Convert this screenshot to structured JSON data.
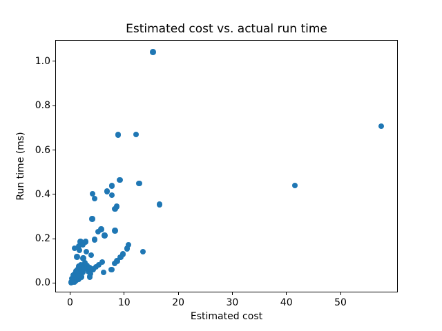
{
  "figure": {
    "background": "#ffffff",
    "spine_color": "#000000",
    "text_color": "#000000"
  },
  "chart_data": {
    "type": "scatter",
    "title": "Estimated cost vs. actual run time",
    "xlabel": "Estimated cost",
    "ylabel": "Run time (ms)",
    "xlim": [
      -2.75,
      60.6
    ],
    "ylim": [
      -0.042,
      1.096
    ],
    "xticks": [
      0,
      10,
      20,
      30,
      40,
      50
    ],
    "yticks": [
      0.0,
      0.2,
      0.4,
      0.6,
      0.8,
      1.0
    ],
    "ytick_decimals": 1,
    "grid": false,
    "legend": null,
    "marker_color": "#1f77b4",
    "marker_diameter_px": 8.4,
    "points": [
      [
        15.3,
        1.041
      ],
      [
        8.85,
        0.668
      ],
      [
        12.2,
        0.67
      ],
      [
        57.5,
        0.708
      ],
      [
        41.6,
        0.44
      ],
      [
        9.2,
        0.465
      ],
      [
        12.75,
        0.449
      ],
      [
        7.75,
        0.438
      ],
      [
        6.85,
        0.413
      ],
      [
        7.7,
        0.396
      ],
      [
        16.5,
        0.355
      ],
      [
        8.65,
        0.345
      ],
      [
        8.3,
        0.334
      ],
      [
        4.15,
        0.402
      ],
      [
        4.5,
        0.381
      ],
      [
        4.1,
        0.289
      ],
      [
        5.75,
        0.242
      ],
      [
        5.2,
        0.232
      ],
      [
        8.3,
        0.236
      ],
      [
        6.4,
        0.214
      ],
      [
        4.5,
        0.196
      ],
      [
        1.9,
        0.186
      ],
      [
        2.9,
        0.186
      ],
      [
        2.35,
        0.172
      ],
      [
        1.6,
        0.166
      ],
      [
        0.85,
        0.157
      ],
      [
        1.75,
        0.148
      ],
      [
        3.0,
        0.142
      ],
      [
        1.25,
        0.118
      ],
      [
        2.4,
        0.112
      ],
      [
        3.9,
        0.126
      ],
      [
        10.8,
        0.173
      ],
      [
        10.5,
        0.156
      ],
      [
        13.5,
        0.142
      ],
      [
        9.8,
        0.13
      ],
      [
        9.3,
        0.116
      ],
      [
        8.7,
        0.1
      ],
      [
        8.2,
        0.088
      ],
      [
        4.3,
        0.062
      ],
      [
        4.8,
        0.073
      ],
      [
        5.3,
        0.082
      ],
      [
        5.9,
        0.094
      ],
      [
        6.2,
        0.048
      ],
      [
        7.65,
        0.06
      ],
      [
        0.15,
        0.003
      ],
      [
        0.3,
        0.008
      ],
      [
        0.5,
        0.004
      ],
      [
        0.65,
        0.012
      ],
      [
        0.85,
        0.006
      ],
      [
        1.0,
        0.01
      ],
      [
        1.2,
        0.015
      ],
      [
        0.4,
        0.02
      ],
      [
        0.7,
        0.024
      ],
      [
        1.0,
        0.028
      ],
      [
        1.35,
        0.022
      ],
      [
        1.6,
        0.018
      ],
      [
        0.55,
        0.035
      ],
      [
        0.9,
        0.04
      ],
      [
        1.2,
        0.045
      ],
      [
        1.5,
        0.038
      ],
      [
        1.8,
        0.032
      ],
      [
        2.1,
        0.028
      ],
      [
        1.05,
        0.055
      ],
      [
        1.4,
        0.06
      ],
      [
        1.75,
        0.052
      ],
      [
        2.0,
        0.06
      ],
      [
        2.3,
        0.048
      ],
      [
        1.6,
        0.075
      ],
      [
        1.95,
        0.082
      ],
      [
        2.3,
        0.072
      ],
      [
        2.6,
        0.065
      ],
      [
        2.75,
        0.09
      ],
      [
        3.1,
        0.08
      ],
      [
        3.55,
        0.068
      ],
      [
        3.4,
        0.052
      ],
      [
        3.8,
        0.042
      ],
      [
        3.6,
        0.028
      ]
    ]
  }
}
